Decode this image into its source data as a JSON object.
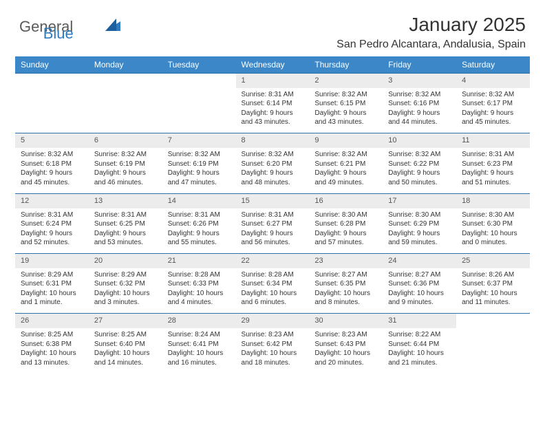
{
  "brand": {
    "name1": "General",
    "name2": "Blue"
  },
  "title": "January 2025",
  "location": "San Pedro Alcantara, Andalusia, Spain",
  "colors": {
    "header_bg": "#3b87c8",
    "row_border": "#2d6fa8",
    "daynum_bg": "#ececec",
    "text": "#333333",
    "logo_gray": "#5a5a5a",
    "logo_blue": "#2f7bbf"
  },
  "dayHeaders": [
    "Sunday",
    "Monday",
    "Tuesday",
    "Wednesday",
    "Thursday",
    "Friday",
    "Saturday"
  ],
  "weeks": [
    [
      {
        "day": "",
        "lines": []
      },
      {
        "day": "",
        "lines": []
      },
      {
        "day": "",
        "lines": []
      },
      {
        "day": "1",
        "lines": [
          "Sunrise: 8:31 AM",
          "Sunset: 6:14 PM",
          "Daylight: 9 hours",
          "and 43 minutes."
        ]
      },
      {
        "day": "2",
        "lines": [
          "Sunrise: 8:32 AM",
          "Sunset: 6:15 PM",
          "Daylight: 9 hours",
          "and 43 minutes."
        ]
      },
      {
        "day": "3",
        "lines": [
          "Sunrise: 8:32 AM",
          "Sunset: 6:16 PM",
          "Daylight: 9 hours",
          "and 44 minutes."
        ]
      },
      {
        "day": "4",
        "lines": [
          "Sunrise: 8:32 AM",
          "Sunset: 6:17 PM",
          "Daylight: 9 hours",
          "and 45 minutes."
        ]
      }
    ],
    [
      {
        "day": "5",
        "lines": [
          "Sunrise: 8:32 AM",
          "Sunset: 6:18 PM",
          "Daylight: 9 hours",
          "and 45 minutes."
        ]
      },
      {
        "day": "6",
        "lines": [
          "Sunrise: 8:32 AM",
          "Sunset: 6:19 PM",
          "Daylight: 9 hours",
          "and 46 minutes."
        ]
      },
      {
        "day": "7",
        "lines": [
          "Sunrise: 8:32 AM",
          "Sunset: 6:19 PM",
          "Daylight: 9 hours",
          "and 47 minutes."
        ]
      },
      {
        "day": "8",
        "lines": [
          "Sunrise: 8:32 AM",
          "Sunset: 6:20 PM",
          "Daylight: 9 hours",
          "and 48 minutes."
        ]
      },
      {
        "day": "9",
        "lines": [
          "Sunrise: 8:32 AM",
          "Sunset: 6:21 PM",
          "Daylight: 9 hours",
          "and 49 minutes."
        ]
      },
      {
        "day": "10",
        "lines": [
          "Sunrise: 8:32 AM",
          "Sunset: 6:22 PM",
          "Daylight: 9 hours",
          "and 50 minutes."
        ]
      },
      {
        "day": "11",
        "lines": [
          "Sunrise: 8:31 AM",
          "Sunset: 6:23 PM",
          "Daylight: 9 hours",
          "and 51 minutes."
        ]
      }
    ],
    [
      {
        "day": "12",
        "lines": [
          "Sunrise: 8:31 AM",
          "Sunset: 6:24 PM",
          "Daylight: 9 hours",
          "and 52 minutes."
        ]
      },
      {
        "day": "13",
        "lines": [
          "Sunrise: 8:31 AM",
          "Sunset: 6:25 PM",
          "Daylight: 9 hours",
          "and 53 minutes."
        ]
      },
      {
        "day": "14",
        "lines": [
          "Sunrise: 8:31 AM",
          "Sunset: 6:26 PM",
          "Daylight: 9 hours",
          "and 55 minutes."
        ]
      },
      {
        "day": "15",
        "lines": [
          "Sunrise: 8:31 AM",
          "Sunset: 6:27 PM",
          "Daylight: 9 hours",
          "and 56 minutes."
        ]
      },
      {
        "day": "16",
        "lines": [
          "Sunrise: 8:30 AM",
          "Sunset: 6:28 PM",
          "Daylight: 9 hours",
          "and 57 minutes."
        ]
      },
      {
        "day": "17",
        "lines": [
          "Sunrise: 8:30 AM",
          "Sunset: 6:29 PM",
          "Daylight: 9 hours",
          "and 59 minutes."
        ]
      },
      {
        "day": "18",
        "lines": [
          "Sunrise: 8:30 AM",
          "Sunset: 6:30 PM",
          "Daylight: 10 hours",
          "and 0 minutes."
        ]
      }
    ],
    [
      {
        "day": "19",
        "lines": [
          "Sunrise: 8:29 AM",
          "Sunset: 6:31 PM",
          "Daylight: 10 hours",
          "and 1 minute."
        ]
      },
      {
        "day": "20",
        "lines": [
          "Sunrise: 8:29 AM",
          "Sunset: 6:32 PM",
          "Daylight: 10 hours",
          "and 3 minutes."
        ]
      },
      {
        "day": "21",
        "lines": [
          "Sunrise: 8:28 AM",
          "Sunset: 6:33 PM",
          "Daylight: 10 hours",
          "and 4 minutes."
        ]
      },
      {
        "day": "22",
        "lines": [
          "Sunrise: 8:28 AM",
          "Sunset: 6:34 PM",
          "Daylight: 10 hours",
          "and 6 minutes."
        ]
      },
      {
        "day": "23",
        "lines": [
          "Sunrise: 8:27 AM",
          "Sunset: 6:35 PM",
          "Daylight: 10 hours",
          "and 8 minutes."
        ]
      },
      {
        "day": "24",
        "lines": [
          "Sunrise: 8:27 AM",
          "Sunset: 6:36 PM",
          "Daylight: 10 hours",
          "and 9 minutes."
        ]
      },
      {
        "day": "25",
        "lines": [
          "Sunrise: 8:26 AM",
          "Sunset: 6:37 PM",
          "Daylight: 10 hours",
          "and 11 minutes."
        ]
      }
    ],
    [
      {
        "day": "26",
        "lines": [
          "Sunrise: 8:25 AM",
          "Sunset: 6:38 PM",
          "Daylight: 10 hours",
          "and 13 minutes."
        ]
      },
      {
        "day": "27",
        "lines": [
          "Sunrise: 8:25 AM",
          "Sunset: 6:40 PM",
          "Daylight: 10 hours",
          "and 14 minutes."
        ]
      },
      {
        "day": "28",
        "lines": [
          "Sunrise: 8:24 AM",
          "Sunset: 6:41 PM",
          "Daylight: 10 hours",
          "and 16 minutes."
        ]
      },
      {
        "day": "29",
        "lines": [
          "Sunrise: 8:23 AM",
          "Sunset: 6:42 PM",
          "Daylight: 10 hours",
          "and 18 minutes."
        ]
      },
      {
        "day": "30",
        "lines": [
          "Sunrise: 8:23 AM",
          "Sunset: 6:43 PM",
          "Daylight: 10 hours",
          "and 20 minutes."
        ]
      },
      {
        "day": "31",
        "lines": [
          "Sunrise: 8:22 AM",
          "Sunset: 6:44 PM",
          "Daylight: 10 hours",
          "and 21 minutes."
        ]
      },
      {
        "day": "",
        "lines": []
      }
    ]
  ]
}
